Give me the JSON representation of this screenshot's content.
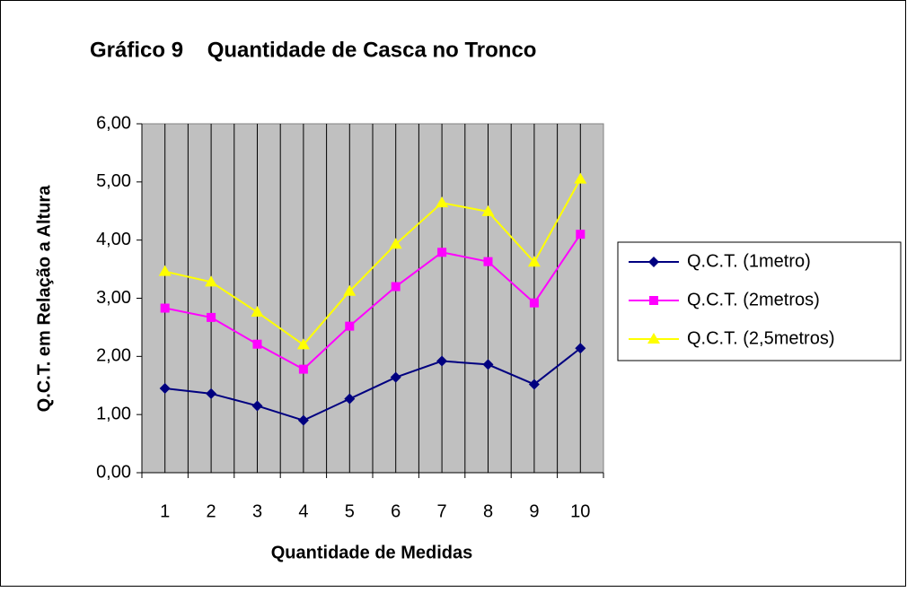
{
  "chart_data": {
    "type": "line",
    "title": "Gráfico 9    Quantidade de Casca no Tronco",
    "x_label": "Quantidade de Medidas",
    "y_label": "Q.C.T. em Relação a Altura",
    "categories": [
      "1",
      "2",
      "3",
      "4",
      "5",
      "6",
      "7",
      "8",
      "9",
      "10"
    ],
    "series": [
      {
        "name": "Q.C.T. (1metro)",
        "color": "#000080",
        "marker": "diamond",
        "values": [
          1.45,
          1.36,
          1.15,
          0.9,
          1.27,
          1.64,
          1.92,
          1.86,
          1.52,
          2.14
        ]
      },
      {
        "name": "Q.C.T. (2metros)",
        "color": "#ff00ff",
        "marker": "square",
        "values": [
          2.83,
          2.67,
          2.21,
          1.78,
          2.52,
          3.2,
          3.79,
          3.63,
          2.92,
          4.1
        ]
      },
      {
        "name": "Q.C.T. (2,5metros)",
        "color": "#ffff00",
        "marker": "triangle",
        "values": [
          3.46,
          3.28,
          2.76,
          2.2,
          3.12,
          3.93,
          4.64,
          4.49,
          3.62,
          5.05
        ]
      }
    ],
    "ylim": [
      0,
      6
    ],
    "yticks": [
      {
        "value": 0,
        "label": "0,00"
      },
      {
        "value": 1,
        "label": "1,00"
      },
      {
        "value": 2,
        "label": "2,00"
      },
      {
        "value": 3,
        "label": "3,00"
      },
      {
        "value": 4,
        "label": "4,00"
      },
      {
        "value": 5,
        "label": "5,00"
      },
      {
        "value": 6,
        "label": "6,00"
      }
    ],
    "plot_background": "#c0c0c0",
    "grid": "vertical",
    "legend": "right"
  }
}
